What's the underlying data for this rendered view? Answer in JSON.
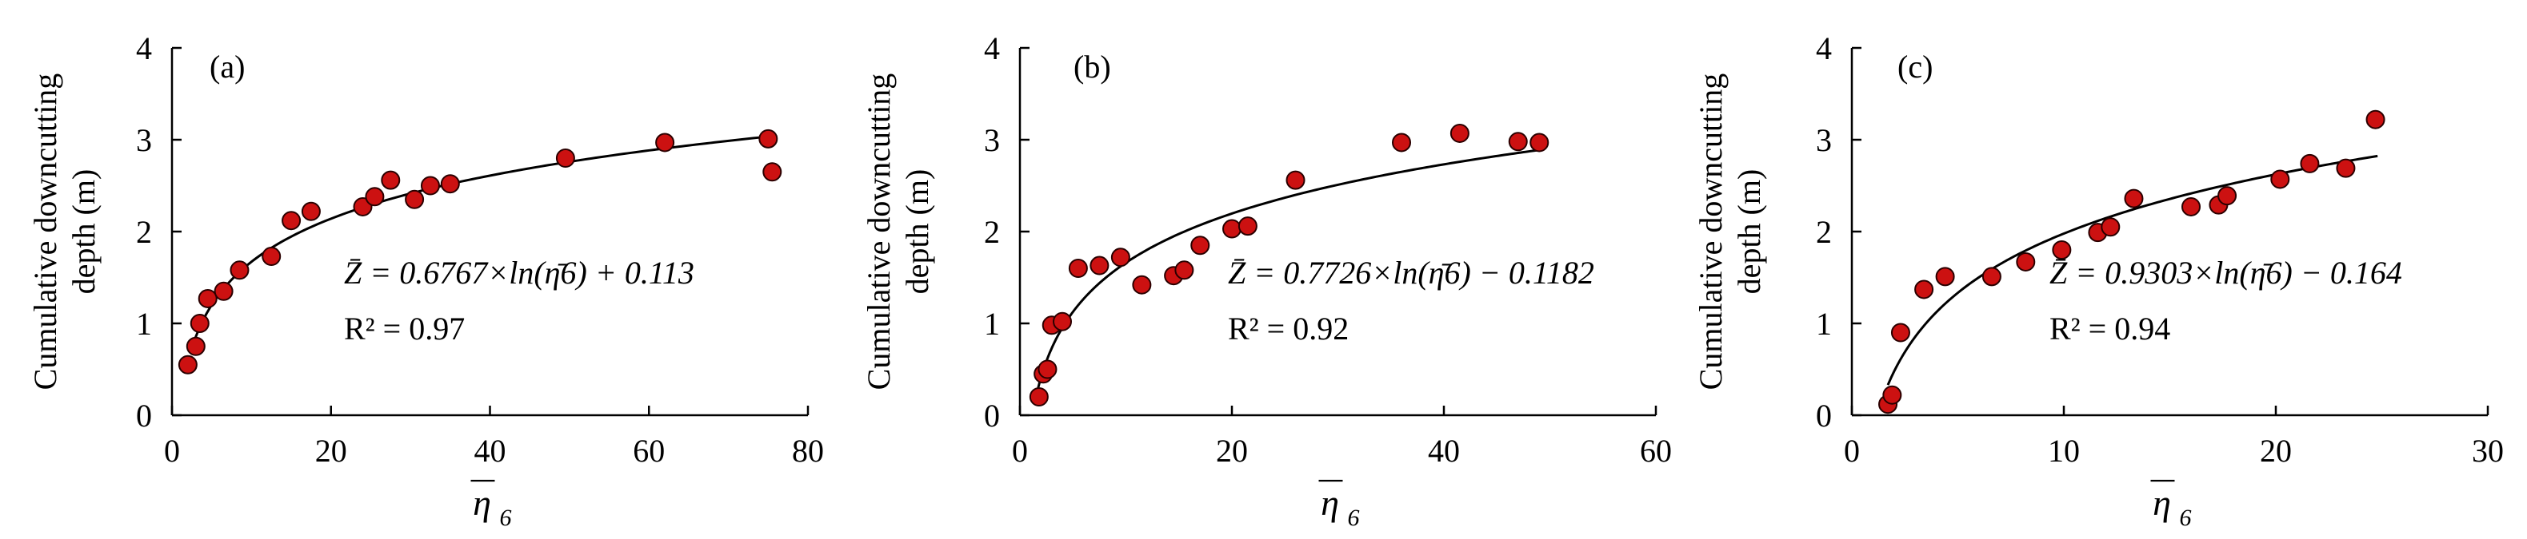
{
  "chart_data": [
    {
      "type": "scatter",
      "panel_label": "(a)",
      "ylabel_lines": [
        "Cumulative downcutting",
        "depth (m)"
      ],
      "xlabel": "η̄6",
      "xlim": [
        0,
        80
      ],
      "ylim": [
        0,
        4
      ],
      "xticks": [
        0,
        20,
        40,
        60,
        80
      ],
      "yticks": [
        0,
        1,
        2,
        3,
        4
      ],
      "equation": "Z̄ = 0.6767×ln(η̄6) + 0.113",
      "r2": "R² = 0.97",
      "fit": {
        "a": 0.6767,
        "b": 0.113,
        "xmin": 2.5,
        "xmax": 75
      },
      "points": [
        {
          "x": 2,
          "y": 0.55
        },
        {
          "x": 3,
          "y": 0.75
        },
        {
          "x": 3.5,
          "y": 1.0
        },
        {
          "x": 4.5,
          "y": 1.27
        },
        {
          "x": 6.5,
          "y": 1.35
        },
        {
          "x": 8.5,
          "y": 1.58
        },
        {
          "x": 12.5,
          "y": 1.73
        },
        {
          "x": 15,
          "y": 2.12
        },
        {
          "x": 17.5,
          "y": 2.22
        },
        {
          "x": 24,
          "y": 2.27
        },
        {
          "x": 25.5,
          "y": 2.38
        },
        {
          "x": 27.5,
          "y": 2.56
        },
        {
          "x": 30.5,
          "y": 2.35
        },
        {
          "x": 32.5,
          "y": 2.5
        },
        {
          "x": 35,
          "y": 2.52
        },
        {
          "x": 49.5,
          "y": 2.8
        },
        {
          "x": 62,
          "y": 2.97
        },
        {
          "x": 75,
          "y": 3.01
        },
        {
          "x": 75.5,
          "y": 2.65
        }
      ]
    },
    {
      "type": "scatter",
      "panel_label": "(b)",
      "ylabel_lines": [
        "Cumulative downcutting",
        "depth (m)"
      ],
      "xlabel": "η̄6",
      "xlim": [
        0,
        60
      ],
      "ylim": [
        0,
        4
      ],
      "xticks": [
        0,
        20,
        40,
        60
      ],
      "yticks": [
        0,
        1,
        2,
        3,
        4
      ],
      "equation": "Z̄ = 0.7726×ln(η̄6) − 0.1182",
      "r2": "R² = 0.92",
      "fit": {
        "a": 0.7726,
        "b": -0.1182,
        "xmin": 1.6,
        "xmax": 49
      },
      "points": [
        {
          "x": 1.8,
          "y": 0.2
        },
        {
          "x": 2.2,
          "y": 0.45
        },
        {
          "x": 2.6,
          "y": 0.5
        },
        {
          "x": 3,
          "y": 0.98
        },
        {
          "x": 4,
          "y": 1.02
        },
        {
          "x": 5.5,
          "y": 1.6
        },
        {
          "x": 7.5,
          "y": 1.63
        },
        {
          "x": 9.5,
          "y": 1.72
        },
        {
          "x": 11.5,
          "y": 1.42
        },
        {
          "x": 14.5,
          "y": 1.52
        },
        {
          "x": 15.5,
          "y": 1.58
        },
        {
          "x": 17,
          "y": 1.85
        },
        {
          "x": 20,
          "y": 2.03
        },
        {
          "x": 21.5,
          "y": 2.06
        },
        {
          "x": 26,
          "y": 2.56
        },
        {
          "x": 36,
          "y": 2.97
        },
        {
          "x": 41.5,
          "y": 3.07
        },
        {
          "x": 47,
          "y": 2.98
        },
        {
          "x": 49,
          "y": 2.97
        }
      ]
    },
    {
      "type": "scatter",
      "panel_label": "(c)",
      "ylabel_lines": [
        "Cumulative downcutting",
        "depth (m)"
      ],
      "xlabel": "η̄6",
      "xlim": [
        0,
        30
      ],
      "ylim": [
        0,
        4
      ],
      "xticks": [
        0,
        10,
        20,
        30
      ],
      "yticks": [
        0,
        1,
        2,
        3,
        4
      ],
      "equation": "Z̄ = 0.9303×ln(η̄6) − 0.164",
      "r2": "R² = 0.94",
      "fit": {
        "a": 0.9303,
        "b": -0.164,
        "xmin": 1.7,
        "xmax": 24.8
      },
      "points": [
        {
          "x": 1.7,
          "y": 0.12
        },
        {
          "x": 1.9,
          "y": 0.22
        },
        {
          "x": 2.3,
          "y": 0.9
        },
        {
          "x": 3.4,
          "y": 1.37
        },
        {
          "x": 4.4,
          "y": 1.51
        },
        {
          "x": 6.6,
          "y": 1.51
        },
        {
          "x": 8.2,
          "y": 1.67
        },
        {
          "x": 9.9,
          "y": 1.8
        },
        {
          "x": 11.6,
          "y": 1.99
        },
        {
          "x": 12.2,
          "y": 2.05
        },
        {
          "x": 13.3,
          "y": 2.36
        },
        {
          "x": 16,
          "y": 2.27
        },
        {
          "x": 17.3,
          "y": 2.29
        },
        {
          "x": 17.7,
          "y": 2.39
        },
        {
          "x": 20.2,
          "y": 2.57
        },
        {
          "x": 21.6,
          "y": 2.74
        },
        {
          "x": 23.3,
          "y": 2.69
        },
        {
          "x": 24.7,
          "y": 3.22
        }
      ]
    }
  ],
  "colors": {
    "marker_fill": "#cc1111",
    "marker_stroke": "#2a0000",
    "axis": "#000000",
    "fit_line": "#000000"
  }
}
